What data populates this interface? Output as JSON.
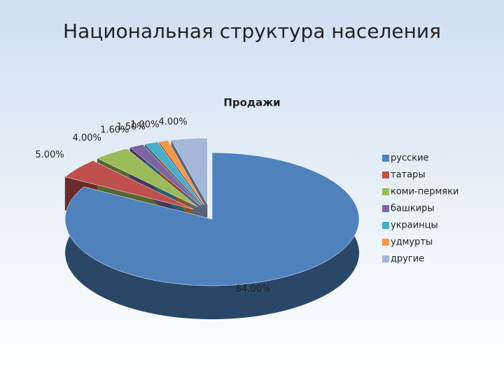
{
  "heading": "Национальная структура населения",
  "chart_data": {
    "type": "pie",
    "title": "Продажи",
    "categories": [
      "русские",
      "татары",
      "коми-пермяки",
      "башкиры",
      "украинцы",
      "удмурты",
      "другие"
    ],
    "values": [
      84,
      5,
      4,
      1.6,
      1.5,
      1,
      4
    ],
    "value_labels": [
      "84.00%",
      "5.00%",
      "4.00%",
      "1.60%",
      "1.50%",
      "1.00%",
      "4.00%"
    ],
    "colors": [
      "#4f81bd",
      "#c0504d",
      "#9bbb59",
      "#8064a2",
      "#4bacc6",
      "#f79646",
      "#a5b6d8"
    ],
    "legend": "right"
  }
}
